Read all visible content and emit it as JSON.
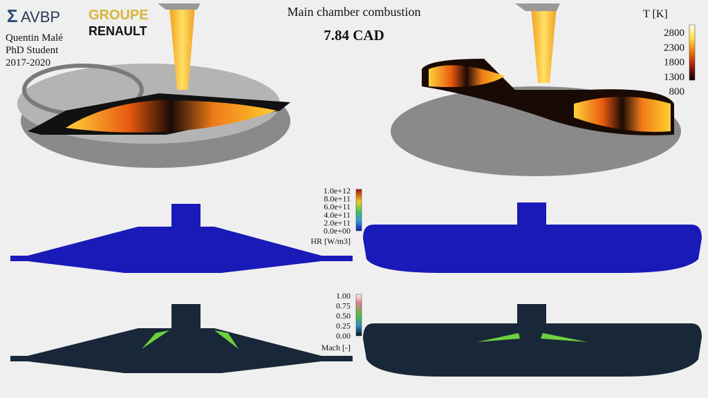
{
  "header": {
    "logo": "AVBP",
    "partner_top": "GROUPE",
    "partner_bottom": "RENAULT",
    "author": "Quentin Malé",
    "role": "PhD Student",
    "years": "2017-2020",
    "title": "Main chamber combustion",
    "time": "7.84 CAD"
  },
  "colorbars": {
    "temperature": {
      "label": "T [K]",
      "ticks": [
        "2800",
        "2300",
        "1800",
        "1300",
        "800"
      ]
    },
    "heat_release": {
      "label": "HR [W/m3]",
      "ticks": [
        "1.0e+12",
        "8.0e+11",
        "6.0e+11",
        "4.0e+11",
        "2.0e+11",
        "0.0e+00"
      ]
    },
    "mach": {
      "label": "Mach [-]",
      "ticks": [
        "1.00",
        "0.75",
        "0.50",
        "0.25",
        "0.00"
      ]
    }
  }
}
